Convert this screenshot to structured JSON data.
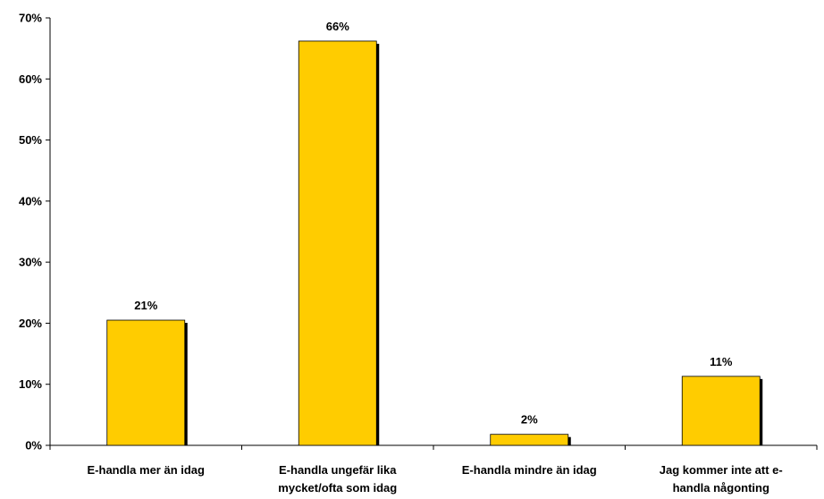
{
  "chart_data": {
    "type": "bar",
    "categories": [
      [
        "E-handla mer än idag"
      ],
      [
        "E-handla ungefär lika",
        "mycket/ofta som idag"
      ],
      [
        "E-handla mindre än idag"
      ],
      [
        "Jag kommer inte att e-",
        "handla någonting"
      ]
    ],
    "values": [
      20.5,
      66.2,
      1.8,
      11.3
    ],
    "data_labels": [
      "21%",
      "66%",
      "2%",
      "11%"
    ],
    "ylim": [
      0,
      70
    ],
    "yticks": [
      0,
      10,
      20,
      30,
      40,
      50,
      60,
      70
    ],
    "ytick_labels": [
      "0%",
      "10%",
      "20%",
      "30%",
      "40%",
      "50%",
      "60%",
      "70%"
    ],
    "bar_color": "#FFCC00",
    "bar_border": "#000000",
    "grid": false,
    "legend": "none"
  }
}
